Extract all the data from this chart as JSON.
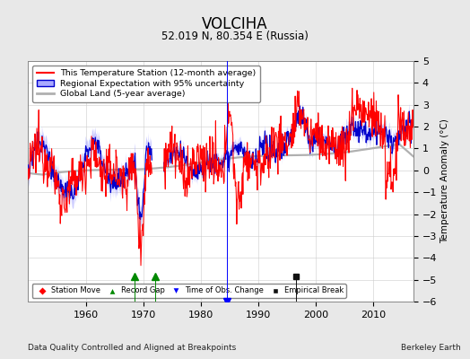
{
  "title": "VOLCIHA",
  "subtitle": "52.019 N, 80.354 E (Russia)",
  "ylabel": "Temperature Anomaly (°C)",
  "xlabel_note": "Data Quality Controlled and Aligned at Breakpoints",
  "credit": "Berkeley Earth",
  "ylim": [
    -6,
    5
  ],
  "xlim": [
    1950,
    2017
  ],
  "xticks": [
    1960,
    1970,
    1980,
    1990,
    2000,
    2010
  ],
  "yticks": [
    -6,
    -5,
    -4,
    -3,
    -2,
    -1,
    0,
    1,
    2,
    3,
    4,
    5
  ],
  "bg_color": "#e8e8e8",
  "plot_bg_color": "#ffffff",
  "station_color": "#ff0000",
  "regional_color": "#0000cc",
  "regional_fill_color": "#aaaaff",
  "global_color": "#b0b0b0",
  "record_gap_color": "#008800",
  "time_obs_color": "#0000ff",
  "empirical_break_color": "#111111",
  "station_move_color": "#ff0000",
  "legend_items": [
    "This Temperature Station (12-month average)",
    "Regional Expectation with 95% uncertainty",
    "Global Land (5-year average)"
  ],
  "marker_events": {
    "record_gaps": [
      1968.5,
      1972.0
    ],
    "time_obs_changes": [
      1984.5
    ],
    "empirical_breaks": [
      1996.5
    ]
  }
}
